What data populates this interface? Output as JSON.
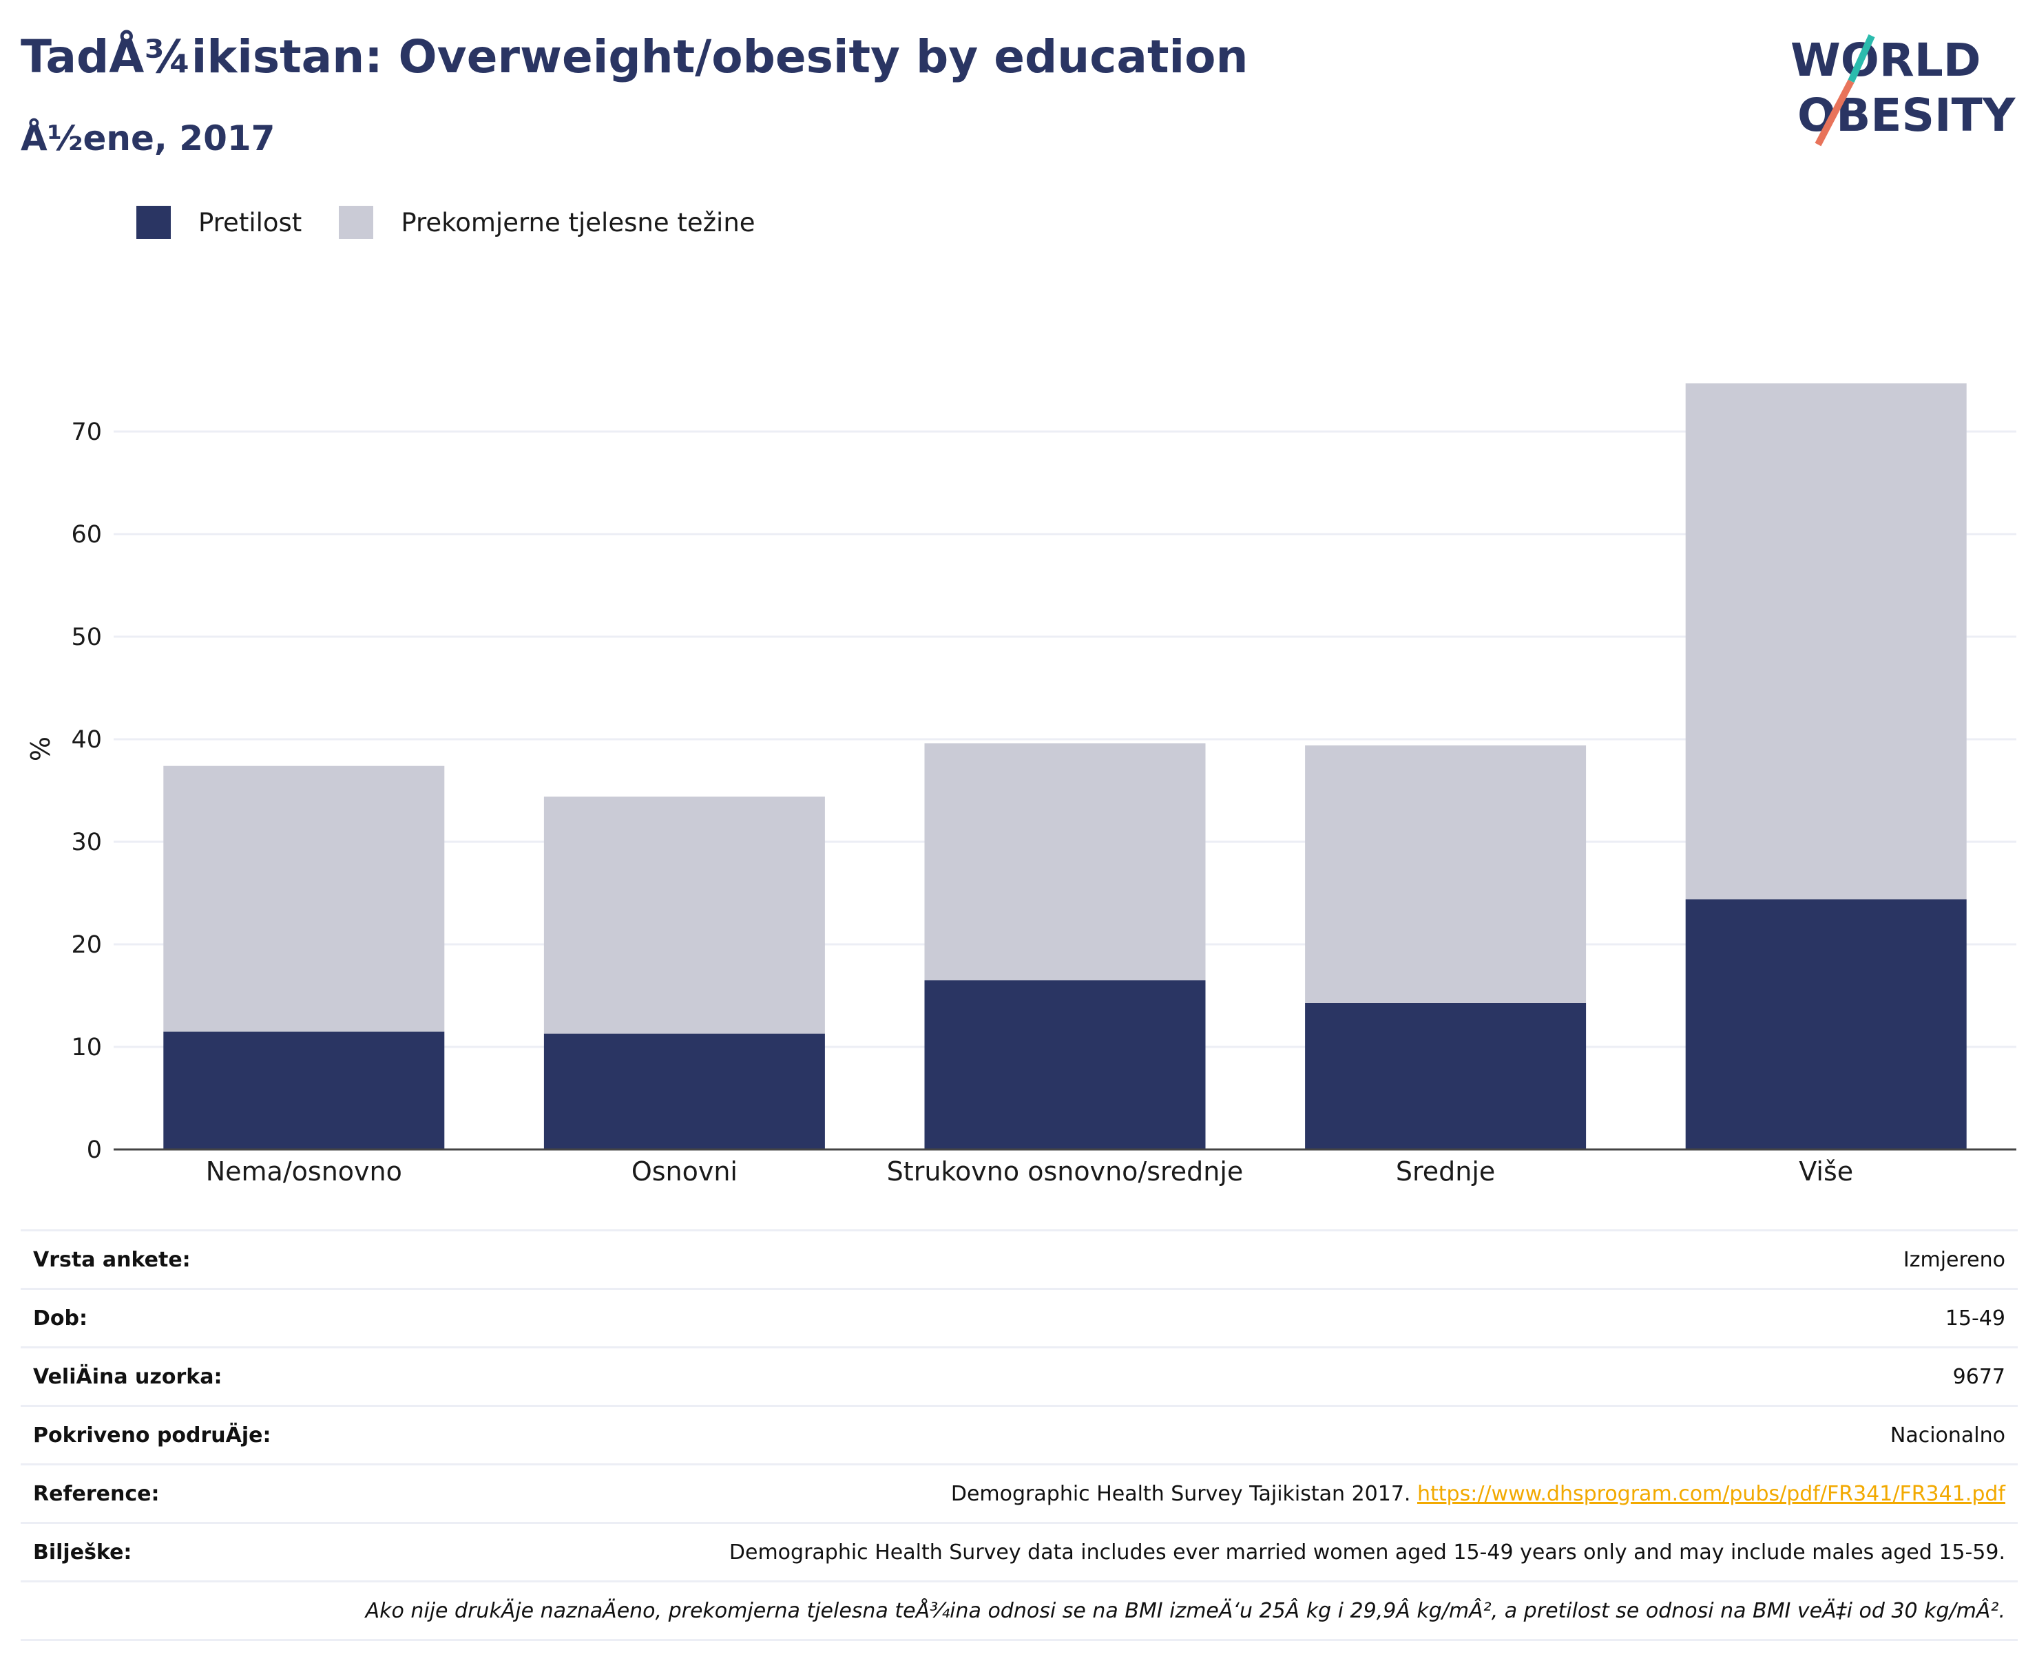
{
  "header": {
    "title": "TadÅ¾ikistan: Overweight/obesity by education",
    "subtitle": "Å½ene, 2017"
  },
  "logo": {
    "line1": "WORLD",
    "line2": "OBESITY",
    "accent_teal": "#2bbbad",
    "accent_coral": "#e8735a"
  },
  "legend": {
    "items": [
      {
        "label": "Pretilost",
        "color": "#2a3563"
      },
      {
        "label": "Prekomjerne tjelesne težine",
        "color": "#cacbd6"
      }
    ]
  },
  "chart_data": {
    "type": "bar",
    "stacked": true,
    "ylabel": "%",
    "ylim": [
      0,
      75
    ],
    "yticks": [
      "0",
      "10",
      "20",
      "30",
      "40",
      "50",
      "60",
      "70"
    ],
    "categories": [
      "Nema/osnovno",
      "Osnovni",
      "Strukovno osnovno/srednje",
      "Srednje",
      "Više"
    ],
    "series": [
      {
        "name": "Pretilost",
        "color": "#2a3563",
        "values": [
          11.5,
          11.3,
          16.5,
          14.3,
          24.4
        ]
      },
      {
        "name": "Prekomjerne tjelesne težine",
        "color": "#cacbd6",
        "values": [
          25.9,
          23.1,
          23.1,
          25.1,
          50.3
        ]
      }
    ],
    "grid": true
  },
  "info": {
    "rows": [
      {
        "key": "Vrsta ankete:",
        "value": "Izmjereno"
      },
      {
        "key": "Dob:",
        "value": "15-49"
      },
      {
        "key": "VeliÄ\u001fina uzorka:",
        "value": "9677"
      },
      {
        "key": "Pokriveno podruÄ\u001dje:",
        "value": "Nacionalno"
      },
      {
        "key": "Reference:",
        "value": "Demographic Health Survey Tajikistan 2017. ",
        "link": "https://www.dhsprogram.com/pubs/pdf/FR341/FR341.pdf"
      },
      {
        "key": "Bilješke:",
        "value": "Demographic Health Survey data includes ever married women aged 15-49 years only and may include males aged 15-59."
      }
    ],
    "note": "Ako nije drukÄ\u001dje naznaÄ\u001deno, prekomjerna tjelesna teÅ¾ina odnosi se na BMI izmeÄ‘u 25Â kg i 29,9Â kg/mÂ², a pretilost se odnosi na BMI veÄ‡i od 30 kg/mÂ²."
  }
}
